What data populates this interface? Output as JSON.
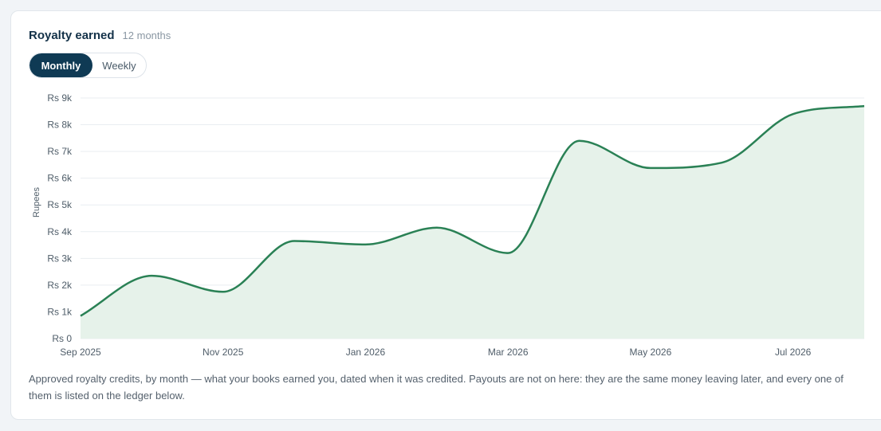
{
  "card": {
    "title": "Royalty earned",
    "subtitle": "12 months"
  },
  "toggle": {
    "monthly_label": "Monthly",
    "weekly_label": "Weekly",
    "selected": "Monthly"
  },
  "caption": "Approved royalty credits, by month — what your books earned you, dated when it was credited. Payouts are not on here: they are the same money leaving later, and every one of them is listed on the ledger below.",
  "colors": {
    "line": "#2a8155",
    "fill": "#e6f2ea",
    "accent": "#0f3a54"
  },
  "chart_data": {
    "type": "area",
    "x": [
      "Sep 2025",
      "Oct 2025",
      "Nov 2025",
      "Dec 2025",
      "Jan 2026",
      "Feb 2026",
      "Mar 2026",
      "Apr 2026",
      "May 2026",
      "Jun 2026",
      "Jul 2026",
      "Aug 2026"
    ],
    "x_tick_labels": [
      "Sep 2025",
      "Nov 2025",
      "Jan 2026",
      "Mar 2026",
      "May 2026",
      "Jul 2026"
    ],
    "series": [
      {
        "values": [
          850,
          2350,
          1750,
          3650,
          3520,
          4150,
          3200,
          7400,
          6380,
          6580,
          8400,
          8700
        ]
      }
    ],
    "ylabel": "Rupees",
    "y_tick_labels": [
      "Rs 0",
      "Rs 1k",
      "Rs 2k",
      "Rs 3k",
      "Rs 4k",
      "Rs 5k",
      "Rs 6k",
      "Rs 7k",
      "Rs 8k",
      "Rs 9k"
    ],
    "ylim": [
      0,
      9000
    ],
    "grid": true
  }
}
